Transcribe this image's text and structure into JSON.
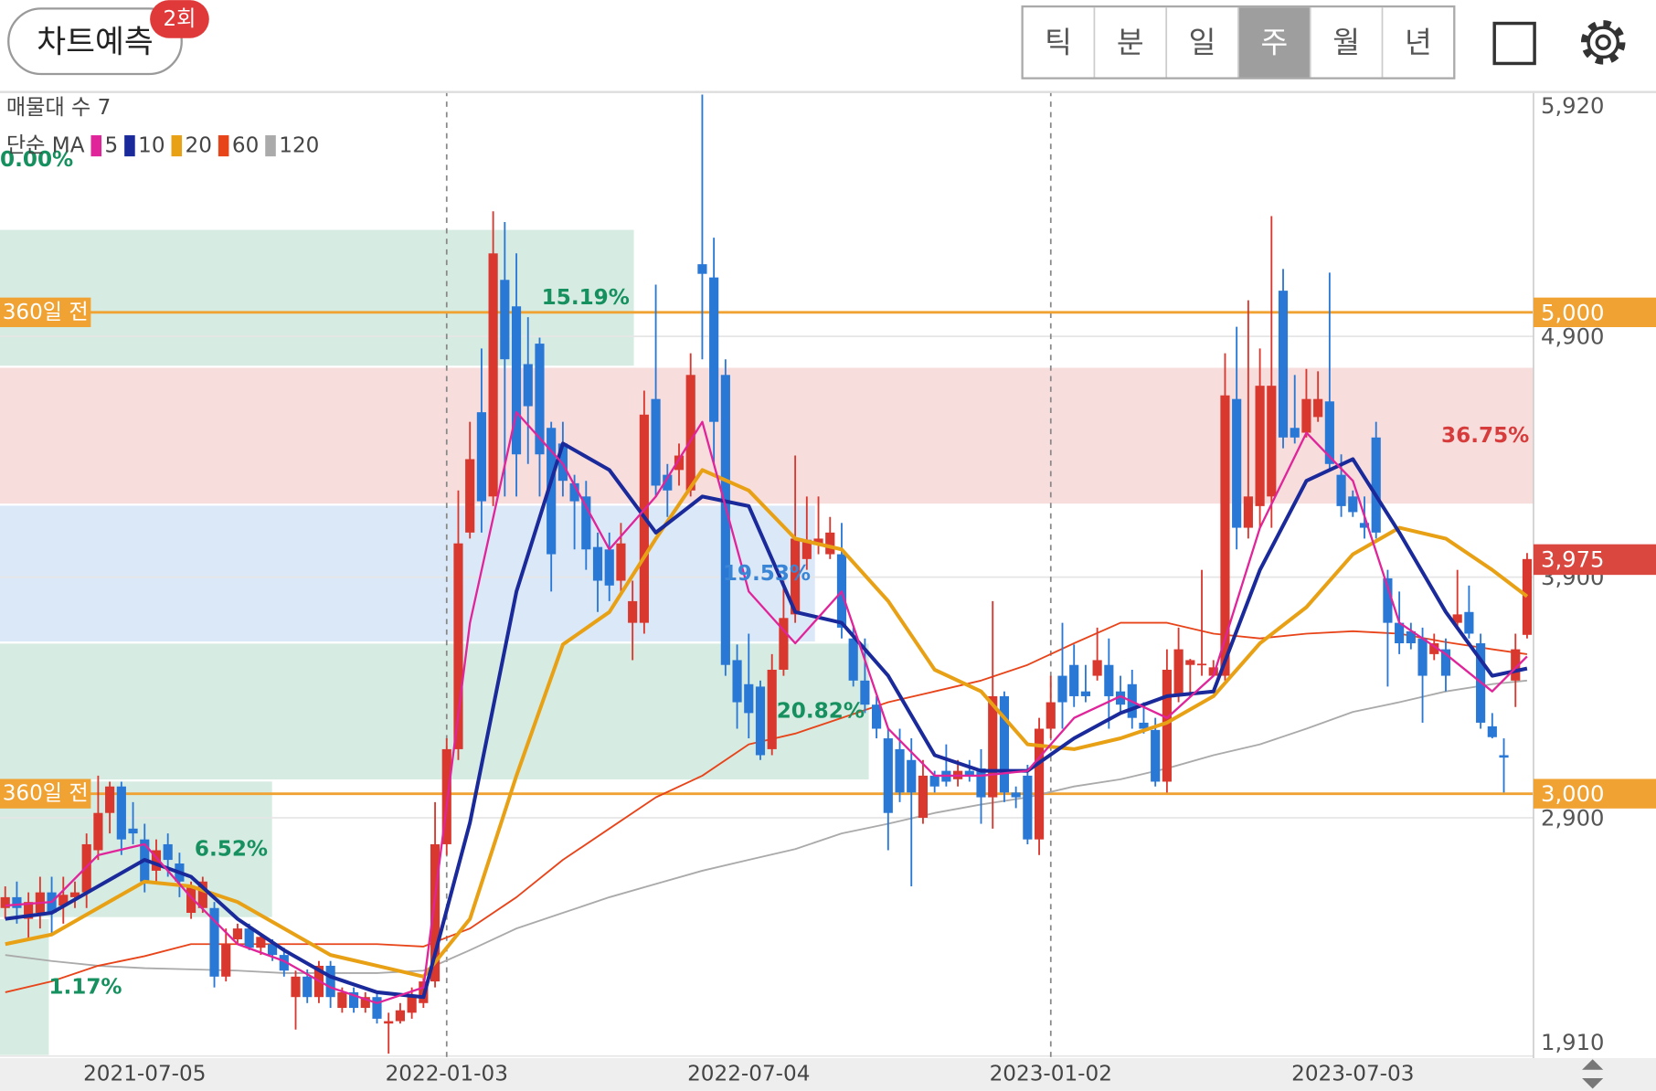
{
  "header": {
    "button": "차트예측",
    "badge": "2회",
    "tabs": [
      "틱",
      "분",
      "일",
      "주",
      "월",
      "년"
    ],
    "selected_tab": 3
  },
  "chart_data": {
    "type": "candlestick",
    "legend_title": "매물대 수 7",
    "ma_label": "단순 MA",
    "ylim": [
      1910,
      5920
    ],
    "yticks": [
      {
        "value": 5920,
        "label": "5,920"
      },
      {
        "value": 4900,
        "label": "4,900"
      },
      {
        "value": 3900,
        "label": "3,900"
      },
      {
        "value": 2900,
        "label": "2,900"
      },
      {
        "value": 1910,
        "label": "1,910"
      }
    ],
    "xlim": [
      -0.45,
      131.55
    ],
    "xticks": [
      {
        "value": 12,
        "label": "2021-07-05"
      },
      {
        "value": 38,
        "label": "2022-01-03"
      },
      {
        "value": 64,
        "label": "2022-07-04"
      },
      {
        "value": 90,
        "label": "2023-01-02"
      },
      {
        "value": 116,
        "label": "2023-07-03"
      }
    ],
    "dividers": [
      38,
      90
    ],
    "grid": true,
    "up_color": "#d9382f",
    "down_color": "#2a78d6",
    "ohlc": [
      [
        2525,
        2615,
        2480,
        2570
      ],
      [
        2570,
        2635,
        2460,
        2525
      ],
      [
        2480,
        2590,
        2395,
        2550
      ],
      [
        2505,
        2655,
        2440,
        2590
      ],
      [
        2590,
        2655,
        2415,
        2505
      ],
      [
        2535,
        2655,
        2460,
        2580
      ],
      [
        2570,
        2635,
        2525,
        2590
      ],
      [
        2590,
        2835,
        2525,
        2790
      ],
      [
        2765,
        3075,
        2725,
        2920
      ],
      [
        2920,
        3050,
        2835,
        3030
      ],
      [
        3030,
        3050,
        2745,
        2810
      ],
      [
        2855,
        2965,
        2790,
        2835
      ],
      [
        2810,
        2875,
        2590,
        2635
      ],
      [
        2680,
        2810,
        2635,
        2765
      ],
      [
        2790,
        2835,
        2655,
        2725
      ],
      [
        2710,
        2755,
        2570,
        2635
      ],
      [
        2505,
        2635,
        2480,
        2615
      ],
      [
        2525,
        2655,
        2505,
        2635
      ],
      [
        2525,
        2550,
        2195,
        2240
      ],
      [
        2240,
        2440,
        2220,
        2375
      ],
      [
        2395,
        2460,
        2375,
        2440
      ],
      [
        2440,
        2460,
        2350,
        2360
      ],
      [
        2360,
        2415,
        2330,
        2405
      ],
      [
        2375,
        2395,
        2305,
        2330
      ],
      [
        2330,
        2360,
        2240,
        2265
      ],
      [
        2155,
        2265,
        2020,
        2240
      ],
      [
        2240,
        2270,
        2130,
        2155
      ],
      [
        2155,
        2305,
        2130,
        2285
      ],
      [
        2285,
        2305,
        2110,
        2155
      ],
      [
        2110,
        2195,
        2090,
        2175
      ],
      [
        2175,
        2195,
        2090,
        2110
      ],
      [
        2110,
        2175,
        2090,
        2155
      ],
      [
        2155,
        2175,
        2045,
        2065
      ],
      [
        2045,
        2090,
        1920,
        2055
      ],
      [
        2055,
        2130,
        2045,
        2100
      ],
      [
        2090,
        2195,
        2065,
        2155
      ],
      [
        2130,
        2240,
        2110,
        2220
      ],
      [
        2220,
        2965,
        2195,
        2790
      ],
      [
        2790,
        3230,
        2745,
        3185
      ],
      [
        3185,
        4260,
        3140,
        4040
      ],
      [
        4085,
        4545,
        4060,
        4390
      ],
      [
        4585,
        4850,
        4085,
        4215
      ],
      [
        4235,
        5420,
        4195,
        5245
      ],
      [
        5135,
        5375,
        4235,
        4805
      ],
      [
        5025,
        5245,
        4235,
        4410
      ],
      [
        4785,
        4980,
        4370,
        4610
      ],
      [
        4870,
        4895,
        4235,
        4410
      ],
      [
        4520,
        4545,
        3840,
        3995
      ],
      [
        4455,
        4545,
        4235,
        4300
      ],
      [
        4290,
        4325,
        4015,
        4215
      ],
      [
        4235,
        4300,
        3930,
        4015
      ],
      [
        4025,
        4085,
        3755,
        3885
      ],
      [
        4015,
        4085,
        3800,
        3865
      ],
      [
        3885,
        4125,
        3840,
        4040
      ],
      [
        3710,
        3885,
        3555,
        3800
      ],
      [
        3710,
        4675,
        3665,
        4575
      ],
      [
        4640,
        5115,
        4235,
        4280
      ],
      [
        4325,
        4370,
        4150,
        4260
      ],
      [
        4345,
        4455,
        4280,
        4405
      ],
      [
        4260,
        4830,
        4235,
        4740
      ],
      [
        5200,
        5905,
        4805,
        5160
      ],
      [
        5145,
        5310,
        4370,
        4545
      ],
      [
        4740,
        4805,
        3490,
        3535
      ],
      [
        3555,
        3620,
        3270,
        3380
      ],
      [
        3455,
        3665,
        3230,
        3335
      ],
      [
        3445,
        3470,
        3140,
        3160
      ],
      [
        3185,
        3580,
        3160,
        3515
      ],
      [
        3515,
        3885,
        3490,
        3730
      ],
      [
        3745,
        4405,
        3710,
        4060
      ],
      [
        3975,
        4235,
        3930,
        4055
      ],
      [
        4040,
        4235,
        3995,
        4060
      ],
      [
        3995,
        4150,
        3975,
        4085
      ],
      [
        3995,
        4125,
        3645,
        3690
      ],
      [
        3645,
        3690,
        3445,
        3470
      ],
      [
        3470,
        3645,
        3335,
        3370
      ],
      [
        3370,
        3405,
        3230,
        3270
      ],
      [
        3230,
        3270,
        2765,
        2920
      ],
      [
        3185,
        3270,
        2965,
        3005
      ],
      [
        3140,
        3230,
        2615,
        3005
      ],
      [
        2900,
        3140,
        2875,
        3075
      ],
      [
        3075,
        3095,
        3005,
        3030
      ],
      [
        3095,
        3205,
        3030,
        3050
      ],
      [
        3060,
        3140,
        3030,
        3095
      ],
      [
        3095,
        3140,
        3050,
        3075
      ],
      [
        3105,
        3185,
        2875,
        2985
      ],
      [
        2985,
        3800,
        2855,
        3405
      ],
      [
        3405,
        3425,
        2965,
        3005
      ],
      [
        3005,
        3030,
        2940,
        2985
      ],
      [
        3075,
        3120,
        2790,
        2810
      ],
      [
        2810,
        3315,
        2745,
        3270
      ],
      [
        3270,
        3490,
        3230,
        3380
      ],
      [
        3490,
        3710,
        3270,
        3380
      ],
      [
        3535,
        3620,
        3360,
        3405
      ],
      [
        3425,
        3535,
        3380,
        3405
      ],
      [
        3490,
        3690,
        3470,
        3555
      ],
      [
        3535,
        3645,
        3270,
        3405
      ],
      [
        3425,
        3490,
        3335,
        3370
      ],
      [
        3455,
        3515,
        3270,
        3315
      ],
      [
        3295,
        3380,
        3250,
        3270
      ],
      [
        3265,
        3315,
        3030,
        3050
      ],
      [
        3050,
        3600,
        3005,
        3515
      ],
      [
        3405,
        3690,
        3380,
        3600
      ],
      [
        3535,
        3560,
        3405,
        3555
      ],
      [
        3535,
        3930,
        3490,
        3540
      ],
      [
        3490,
        3555,
        3490,
        3525
      ],
      [
        3490,
        4830,
        3470,
        4655
      ],
      [
        4640,
        4940,
        4015,
        4105
      ],
      [
        4105,
        5050,
        4060,
        4235
      ],
      [
        4195,
        4850,
        4105,
        4695
      ],
      [
        4235,
        5400,
        4105,
        4695
      ],
      [
        5090,
        5180,
        4435,
        4480
      ],
      [
        4520,
        4740,
        4455,
        4480
      ],
      [
        4500,
        4765,
        4480,
        4640
      ],
      [
        4565,
        4755,
        4545,
        4640
      ],
      [
        4630,
        5165,
        4345,
        4370
      ],
      [
        4325,
        4410,
        4150,
        4195
      ],
      [
        4235,
        4260,
        4150,
        4170
      ],
      [
        4125,
        4235,
        4060,
        4105
      ],
      [
        4480,
        4545,
        4060,
        4085
      ],
      [
        3895,
        3930,
        3445,
        3710
      ],
      [
        3710,
        3840,
        3580,
        3625
      ],
      [
        3675,
        3710,
        3600,
        3625
      ],
      [
        3645,
        3690,
        3295,
        3490
      ],
      [
        3580,
        3665,
        3555,
        3625
      ],
      [
        3600,
        3645,
        3425,
        3490
      ],
      [
        3710,
        3930,
        3690,
        3745
      ],
      [
        3755,
        3865,
        3645,
        3665
      ],
      [
        3625,
        3665,
        3270,
        3295
      ],
      [
        3280,
        3335,
        3230,
        3235
      ],
      [
        3160,
        3230,
        3005,
        3150
      ],
      [
        3470,
        3665,
        3360,
        3600
      ],
      [
        3660,
        4000,
        3645,
        3975
      ]
    ],
    "ma_x": [
      0,
      4,
      8,
      12,
      16,
      20,
      24,
      28,
      32,
      36,
      40,
      44,
      48,
      52,
      56,
      60,
      64,
      68,
      72,
      76,
      80,
      84,
      88,
      92,
      96,
      100,
      104,
      108,
      112,
      116,
      120,
      124,
      128,
      131
    ],
    "series": [
      {
        "name": "120",
        "color": "#aaaaaa",
        "width": 1.6,
        "values": [
          2330,
          2305,
          2285,
          2275,
          2270,
          2265,
          2255,
          2255,
          2255,
          2265,
          2350,
          2440,
          2505,
          2570,
          2625,
          2680,
          2725,
          2770,
          2835,
          2875,
          2920,
          2955,
          2985,
          3030,
          3060,
          3105,
          3160,
          3205,
          3270,
          3340,
          3380,
          3425,
          3455,
          3470
        ]
      },
      {
        "name": "60",
        "color": "#e8441a",
        "width": 1.6,
        "values": [
          2175,
          2220,
          2285,
          2325,
          2375,
          2375,
          2375,
          2375,
          2375,
          2365,
          2440,
          2570,
          2725,
          2855,
          2985,
          3075,
          3205,
          3250,
          3315,
          3380,
          3425,
          3470,
          3535,
          3625,
          3710,
          3710,
          3665,
          3645,
          3665,
          3675,
          3665,
          3630,
          3600,
          3580
        ]
      },
      {
        "name": "20",
        "color": "#e8a015",
        "width": 3.5,
        "values": [
          2375,
          2415,
          2525,
          2635,
          2615,
          2550,
          2440,
          2330,
          2285,
          2240,
          2480,
          3075,
          3620,
          3755,
          4060,
          4345,
          4260,
          4060,
          4015,
          3800,
          3515,
          3425,
          3205,
          3185,
          3230,
          3295,
          3405,
          3625,
          3775,
          3995,
          4105,
          4060,
          3930,
          3820
        ]
      },
      {
        "name": "10",
        "color": "#1a2a9a",
        "width": 3.5,
        "values": [
          2480,
          2505,
          2615,
          2725,
          2655,
          2480,
          2350,
          2240,
          2175,
          2155,
          2880,
          3840,
          4455,
          4345,
          4085,
          4235,
          4195,
          3755,
          3710,
          3490,
          3160,
          3095,
          3095,
          3230,
          3335,
          3405,
          3425,
          3930,
          4300,
          4390,
          4085,
          3755,
          3490,
          3520
        ]
      },
      {
        "name": "5",
        "color": "#e0249a",
        "width": 2,
        "values": [
          2535,
          2550,
          2745,
          2790,
          2570,
          2375,
          2305,
          2195,
          2130,
          2195,
          3710,
          4585,
          4370,
          4015,
          4235,
          4545,
          3840,
          3625,
          3840,
          3270,
          3075,
          3075,
          3095,
          3315,
          3405,
          3315,
          3490,
          4105,
          4500,
          4300,
          3710,
          3580,
          3425,
          3570
        ]
      }
    ],
    "legend_order": [
      4,
      3,
      2,
      1,
      0
    ],
    "bands": [
      {
        "low": 1910,
        "high": 2483,
        "percent": 1.17,
        "percent_label": "1.17%",
        "color": "#d6ece2",
        "label_color": "#16905f"
      },
      {
        "low": 2483,
        "high": 3055,
        "percent": 6.52,
        "percent_label": "6.52%",
        "color": "#d6ece2",
        "label_color": "#16905f"
      },
      {
        "low": 3055,
        "high": 3628,
        "percent": 20.82,
        "percent_label": "20.82%",
        "color": "#d6ece2",
        "label_color": "#16905f"
      },
      {
        "low": 3628,
        "high": 4201,
        "percent": 19.53,
        "percent_label": "19.53%",
        "color": "#dbe8f7",
        "label_color": "#3a85d6"
      },
      {
        "low": 4201,
        "high": 4774,
        "percent": 36.75,
        "percent_label": "36.75%",
        "color": "#f8dddd",
        "label_color": "#d63c3c"
      },
      {
        "low": 4774,
        "high": 5347,
        "percent": 15.19,
        "percent_label": "15.19%",
        "color": "#d6ece2",
        "label_color": "#16905f"
      },
      {
        "low": 5347,
        "high": 5920,
        "percent": 0,
        "percent_label": "0.00%",
        "color": "#d6ece2",
        "label_color": "#16905f"
      }
    ],
    "levels": [
      {
        "value": 5000,
        "label": "5,000",
        "note": "360일 전",
        "color": "#f0a232"
      },
      {
        "value": 3000,
        "label": "3,000",
        "note": "360일 전",
        "color": "#f0a232"
      }
    ],
    "last_price": {
      "value": 3975,
      "label": "3,975",
      "color": "#d9473f"
    }
  }
}
